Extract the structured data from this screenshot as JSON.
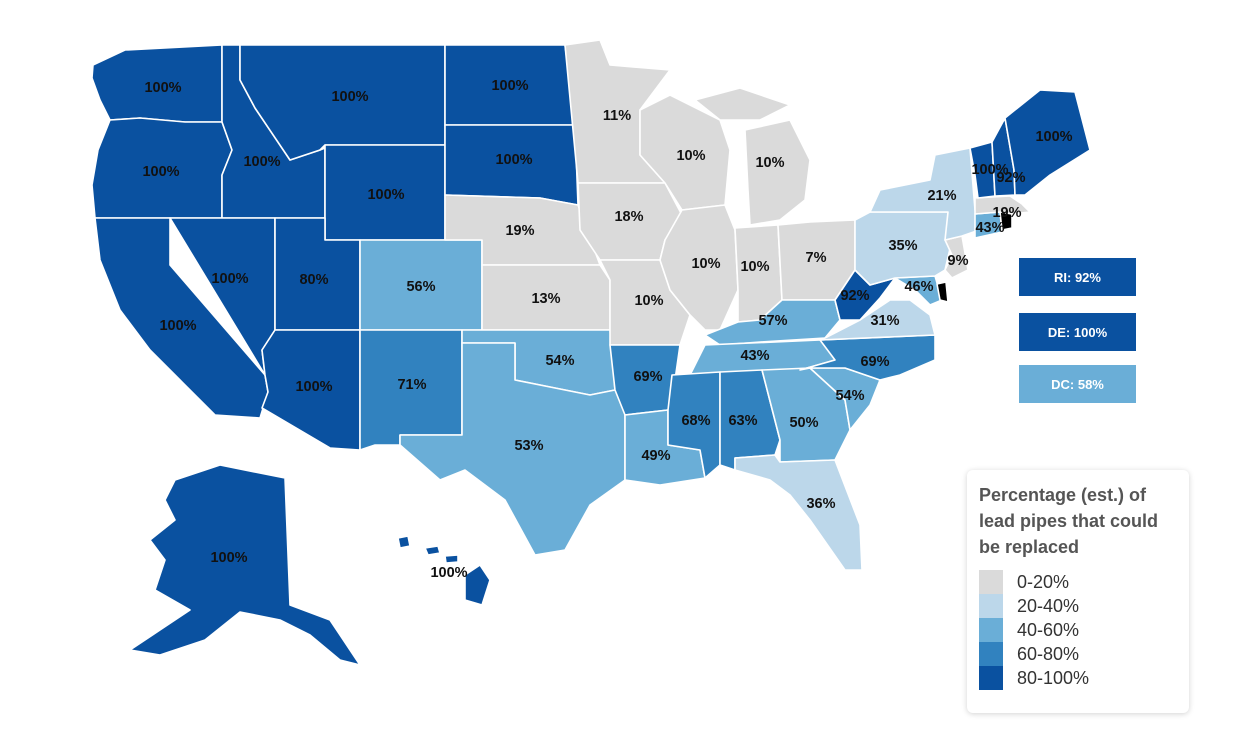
{
  "map": {
    "colors": {
      "bin_0_20": "#dadada",
      "bin_20_40": "#bcd7ea",
      "bin_40_60": "#6aaed7",
      "bin_60_80": "#3182bf",
      "bin_80_100": "#0a51a0"
    },
    "states": {
      "WA": "100%",
      "OR": "100%",
      "CA": "100%",
      "ID": "100%",
      "NV": "100%",
      "MT": "100%",
      "WY": "100%",
      "UT": "80%",
      "AZ": "100%",
      "CO": "56%",
      "NM": "71%",
      "ND": "100%",
      "SD": "100%",
      "NE": "19%",
      "KS": "13%",
      "OK": "54%",
      "TX": "53%",
      "MN": "11%",
      "IA": "18%",
      "MO": "10%",
      "AR": "69%",
      "LA": "49%",
      "WI": "10%",
      "IL": "10%",
      "MI": "10%",
      "IN": "10%",
      "OH": "7%",
      "KY": "57%",
      "TN": "43%",
      "MS": "68%",
      "AL": "63%",
      "GA": "50%",
      "FL": "36%",
      "SC": "54%",
      "NC": "69%",
      "VA": "31%",
      "WV": "92%",
      "PA": "35%",
      "NY": "21%",
      "NJ": "9%",
      "MD": "46%",
      "CT": "43%",
      "MA": "19%",
      "VT": "100%",
      "NH": "92%",
      "ME": "100%",
      "AK": "100%",
      "HI": "100%"
    }
  },
  "callouts": {
    "ri": {
      "text": "RI: 92%",
      "color": "#0a51a0"
    },
    "de": {
      "text": "DE: 100%",
      "color": "#0a51a0"
    },
    "dc": {
      "text": "DC: 58%",
      "color": "#6aaed7"
    }
  },
  "legend": {
    "title": "Percentage (est.) of lead pipes that could be replaced",
    "items": [
      {
        "label": "0-20%",
        "color": "#dadada"
      },
      {
        "label": "20-40%",
        "color": "#bcd7ea"
      },
      {
        "label": "40-60%",
        "color": "#6aaed7"
      },
      {
        "label": "60-80%",
        "color": "#3182bf"
      },
      {
        "label": "80-100%",
        "color": "#0a51a0"
      }
    ]
  }
}
